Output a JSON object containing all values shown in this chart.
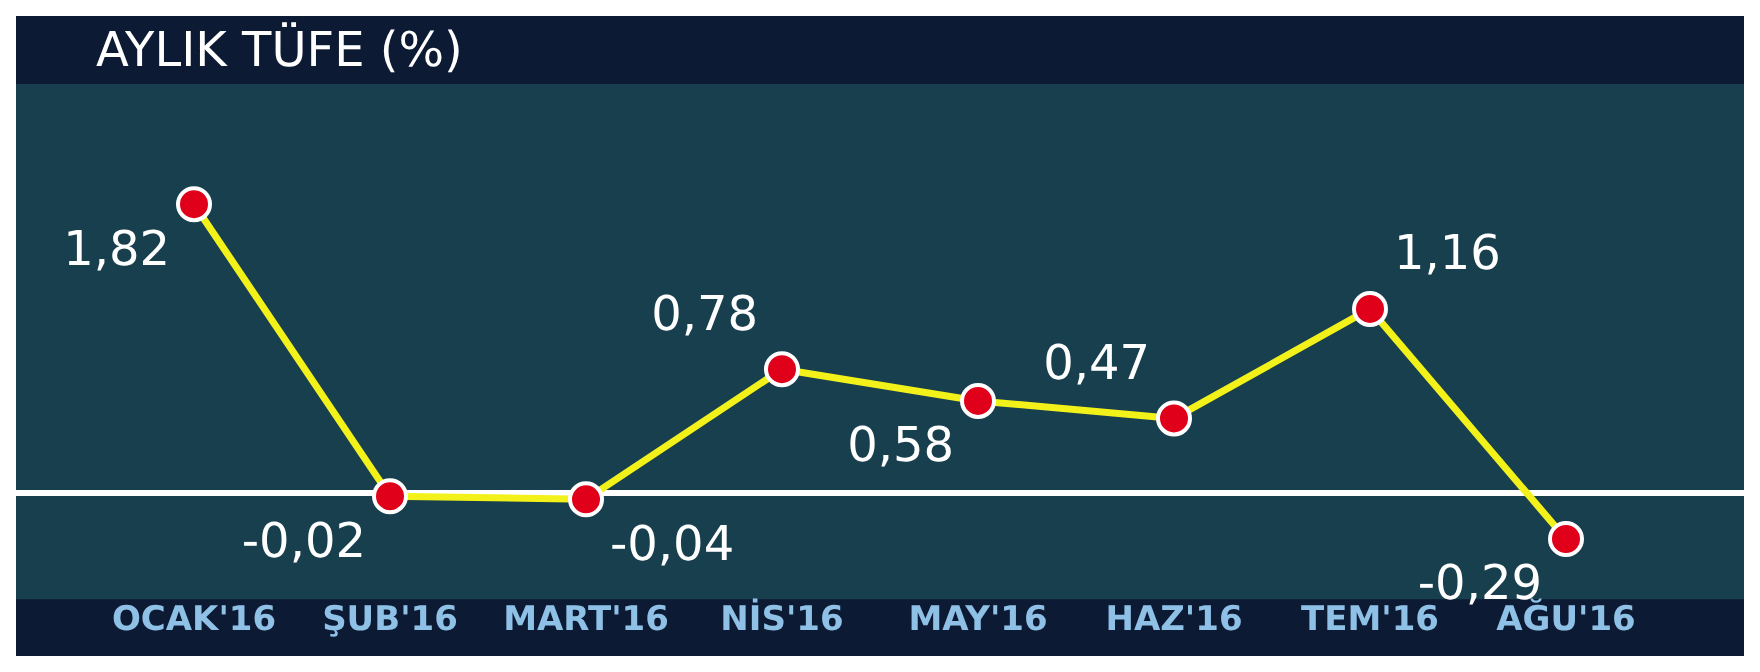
{
  "chart_data": {
    "type": "line",
    "title": "AYLIK TÜFE (%)",
    "categories": [
      "OCAK'16",
      "ŞUB'16",
      "MART'16",
      "NİS'16",
      "MAY'16",
      "HAZ'16",
      "TEM'16",
      "AĞU'16"
    ],
    "series": [
      {
        "color": "#f2f21a",
        "values": [
          1.82,
          -0.02,
          -0.04,
          0.78,
          0.58,
          0.47,
          1.16,
          -0.29
        ],
        "value_labels": [
          "1,82",
          "-0,02",
          "-0,04",
          "0,78",
          "0,58",
          "0,47",
          "1,16",
          "-0,29"
        ]
      }
    ],
    "marker": "circle",
    "grid": false,
    "legend": false
  }
}
